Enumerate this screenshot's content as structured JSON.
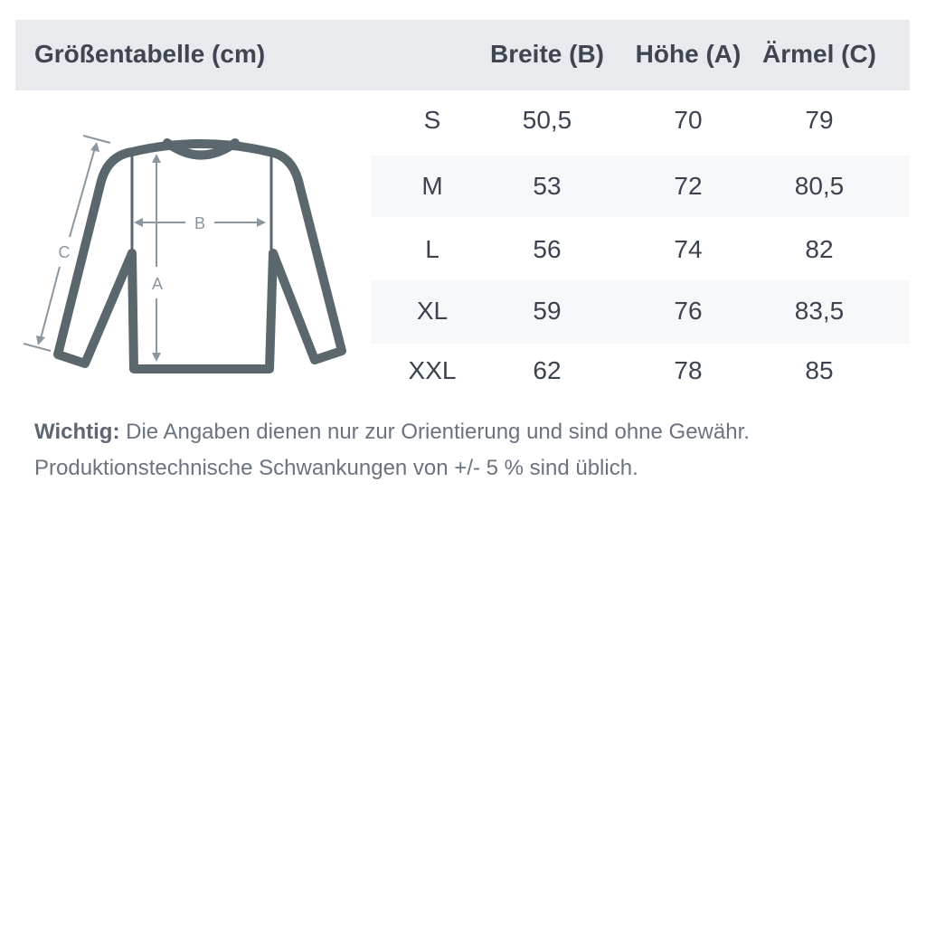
{
  "title": "Größentabelle (cm)",
  "columns": [
    "Breite (B)",
    "Höhe (A)",
    "Ärmel (C)"
  ],
  "rows": [
    {
      "size": "S",
      "breite": "50,5",
      "hoehe": "70",
      "aermel": "79"
    },
    {
      "size": "M",
      "breite": "53",
      "hoehe": "72",
      "aermel": "80,5"
    },
    {
      "size": "L",
      "breite": "56",
      "hoehe": "74",
      "aermel": "82"
    },
    {
      "size": "XL",
      "breite": "59",
      "hoehe": "76",
      "aermel": "83,5"
    },
    {
      "size": "XXL",
      "breite": "62",
      "hoehe": "78",
      "aermel": "85"
    }
  ],
  "diagram": {
    "label_a": "A",
    "label_b": "B",
    "label_c": "C",
    "icon": "sweater-measurement-icon"
  },
  "note": {
    "label": "Wichtig:",
    "line1": "Die Angaben dienen nur zur Orientierung und sind ohne Gewähr.",
    "line2": "Produktionstechnische Schwankungen von +/- 5 % sind üblich."
  },
  "colors": {
    "header_bg": "#e9eaee",
    "stripe_bg": "#f7f8fa",
    "text": "#3b4350",
    "sweater": "#5a676d",
    "measure": "#8a96a0"
  }
}
